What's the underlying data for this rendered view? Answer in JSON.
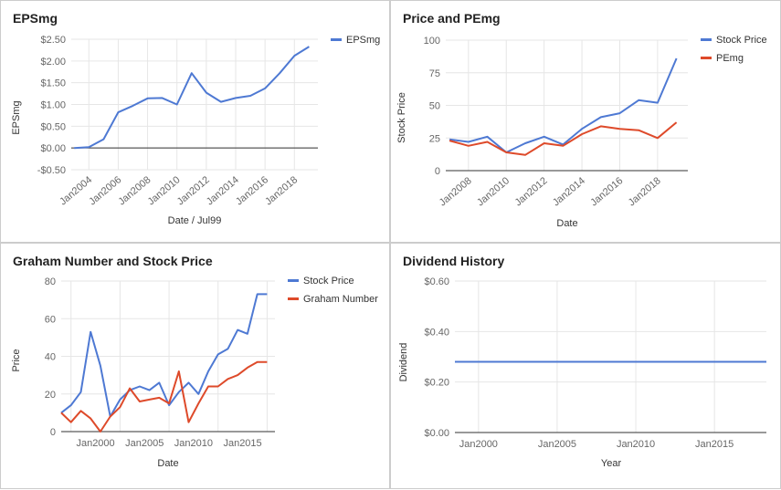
{
  "colors": {
    "blue": "#4e79d3",
    "red": "#de4a2a",
    "grid": "#e6e6e6",
    "zero": "#333333",
    "tick": "#666666",
    "label": "#333333"
  },
  "chart_data": [
    {
      "id": "eps",
      "type": "line",
      "title": "EPSmg",
      "xlabel": "Date / Jul99",
      "ylabel": "EPSmg",
      "xlim": [
        2002.8,
        2019.6
      ],
      "ylim": [
        -0.5,
        2.5
      ],
      "yticks": [
        -0.5,
        0,
        0.5,
        1,
        1.5,
        2,
        2.5
      ],
      "ytick_labels": [
        "-$0.50",
        "$0.00",
        "$0.50",
        "$1.00",
        "$1.50",
        "$2.00",
        "$2.50"
      ],
      "xticks": [
        2004,
        2006,
        2008,
        2010,
        2012,
        2014,
        2016,
        2018
      ],
      "xtick_labels": [
        "Jan2004",
        "Jan2006",
        "Jan2008",
        "Jan2010",
        "Jan2012",
        "Jan2014",
        "Jan2016",
        "Jan2018"
      ],
      "zero_line": true,
      "legend": "right",
      "series": [
        {
          "name": "EPSmg",
          "color": "#4e79d3",
          "x": [
            2003,
            2004,
            2005,
            2006,
            2007,
            2008,
            2009,
            2010,
            2011,
            2012,
            2013,
            2014,
            2015,
            2016,
            2017,
            2018,
            2019
          ],
          "values": [
            0.0,
            0.02,
            0.2,
            0.82,
            0.97,
            1.14,
            1.15,
            1.0,
            1.72,
            1.27,
            1.06,
            1.15,
            1.2,
            1.37,
            1.72,
            2.12,
            2.33
          ]
        }
      ]
    },
    {
      "id": "price",
      "type": "line",
      "title": "Price and PEmg",
      "xlabel": "Date",
      "ylabel": "Stock Price",
      "xlim": [
        2006.8,
        2019.6
      ],
      "ylim": [
        0,
        100
      ],
      "yticks": [
        0,
        25,
        50,
        75,
        100
      ],
      "ytick_labels": [
        "0",
        "25",
        "50",
        "75",
        "100"
      ],
      "xticks": [
        2008,
        2010,
        2012,
        2014,
        2016,
        2018
      ],
      "xtick_labels": [
        "Jan2008",
        "Jan2010",
        "Jan2012",
        "Jan2014",
        "Jan2016",
        "Jan2018"
      ],
      "zero_line": true,
      "legend": "right",
      "series": [
        {
          "name": "Stock Price",
          "color": "#4e79d3",
          "x": [
            2007,
            2008,
            2009,
            2010,
            2011,
            2012,
            2013,
            2014,
            2015,
            2016,
            2017,
            2018,
            2019
          ],
          "values": [
            24,
            22,
            26,
            14,
            21,
            26,
            20,
            32,
            41,
            44,
            54,
            52,
            86
          ]
        },
        {
          "name": "PEmg",
          "color": "#de4a2a",
          "x": [
            2007,
            2008,
            2009,
            2010,
            2011,
            2012,
            2013,
            2014,
            2015,
            2016,
            2017,
            2018,
            2019
          ],
          "values": [
            23,
            19,
            22,
            14,
            12,
            21,
            19,
            28,
            34,
            32,
            31,
            25,
            37
          ]
        }
      ]
    },
    {
      "id": "graham",
      "type": "line",
      "title": "Graham Number and Stock Price",
      "xlabel": "Date",
      "ylabel": "Price",
      "xlim": [
        1996.5,
        2018.3
      ],
      "ylim": [
        0,
        80
      ],
      "yticks": [
        0,
        20,
        40,
        60,
        80
      ],
      "ytick_labels": [
        "0",
        "20",
        "40",
        "60",
        "80"
      ],
      "xticks": [
        2000,
        2005,
        2010,
        2015
      ],
      "xtick_labels": [
        "Jan2000",
        "Jan2005",
        "Jan2010",
        "Jan2015"
      ],
      "vgrid_at": [
        1997.5,
        2002.5,
        2007.5,
        2012.5,
        2017.5
      ],
      "zero_line": true,
      "legend": "right",
      "series": [
        {
          "name": "Stock Price",
          "color": "#4e79d3",
          "x": [
            1996.5,
            1997.5,
            1998.5,
            1999.5,
            2000.5,
            2001.5,
            2002.5,
            2003.5,
            2004.5,
            2005.5,
            2006.5,
            2007.5,
            2008.5,
            2009.5,
            2010.5,
            2011.5,
            2012.5,
            2013.5,
            2014.5,
            2015.5,
            2016.5,
            2017.5
          ],
          "values": [
            10,
            14,
            21,
            53,
            35,
            8,
            17,
            22,
            24,
            22,
            26,
            14,
            21,
            26,
            20,
            32,
            41,
            44,
            54,
            52,
            73,
            73
          ]
        },
        {
          "name": "Graham Number",
          "color": "#de4a2a",
          "x": [
            1996.5,
            1997.5,
            1998.5,
            1999.5,
            2000.5,
            2001.5,
            2002.5,
            2003.5,
            2004.5,
            2005.5,
            2006.5,
            2007.5,
            2008.5,
            2009.5,
            2010.5,
            2011.5,
            2012.5,
            2013.5,
            2014.5,
            2015.5,
            2016.5,
            2017.5
          ],
          "values": [
            10,
            5,
            11,
            7,
            0,
            8,
            13,
            23,
            16,
            17,
            18,
            15,
            32,
            5,
            15,
            24,
            24,
            28,
            30,
            34,
            37,
            37
          ]
        }
      ]
    },
    {
      "id": "dividend",
      "type": "line",
      "title": "Dividend History",
      "xlabel": "Year",
      "ylabel": "Dividend",
      "xlim": [
        1998.5,
        2018.3
      ],
      "ylim": [
        0,
        0.6
      ],
      "yticks": [
        0,
        0.2,
        0.4,
        0.6
      ],
      "ytick_labels": [
        "$0.00",
        "$0.20",
        "$0.40",
        "$0.60"
      ],
      "xticks": [
        2000,
        2005,
        2010,
        2015
      ],
      "xtick_labels": [
        "Jan2000",
        "Jan2005",
        "Jan2010",
        "Jan2015"
      ],
      "zero_line": true,
      "legend": "none",
      "series": [
        {
          "name": "Dividend",
          "color": "#4e79d3",
          "x": [
            1998.5,
            2018.3
          ],
          "values": [
            0.28,
            0.28
          ]
        }
      ]
    }
  ]
}
